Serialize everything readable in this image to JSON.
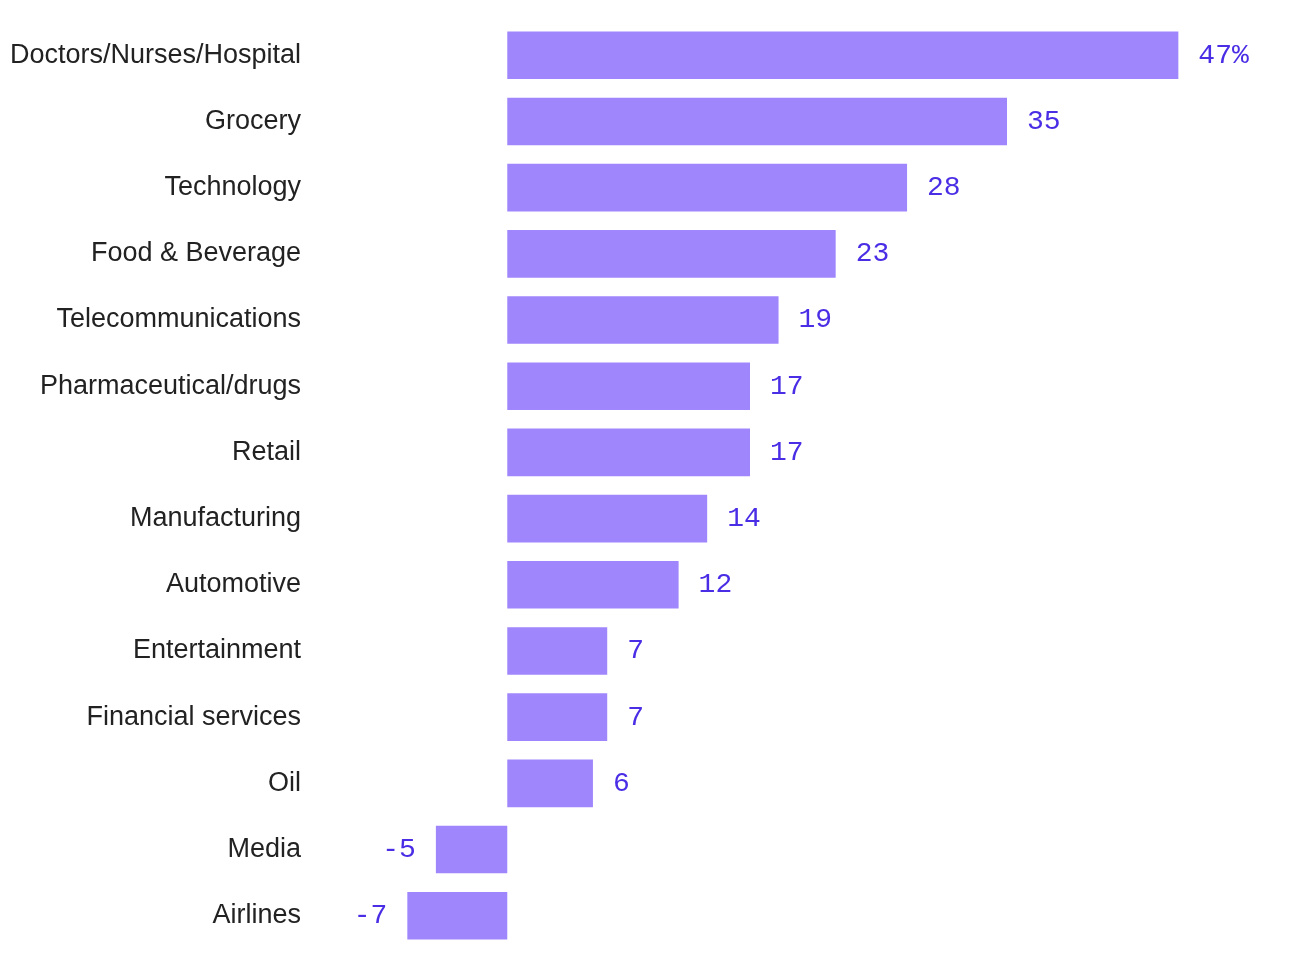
{
  "chart_data": {
    "type": "bar",
    "orientation": "horizontal",
    "categories": [
      "Doctors/Nurses/Hospital",
      "Grocery",
      "Technology",
      "Food & Beverage",
      "Telecommunications",
      "Pharmaceutical/drugs",
      "Retail",
      "Manufacturing",
      "Automotive",
      "Entertainment",
      "Financial services",
      "Oil",
      "Media",
      "Airlines"
    ],
    "values": [
      47,
      35,
      28,
      23,
      19,
      17,
      17,
      14,
      12,
      7,
      7,
      6,
      -5,
      -7
    ],
    "value_labels": [
      "47%",
      "35",
      "28",
      "23",
      "19",
      "17",
      "17",
      "14",
      "12",
      "7",
      "7",
      "6",
      "-5",
      "-7"
    ],
    "color": "#a086fd",
    "tick_labels": "y",
    "legend": false
  }
}
